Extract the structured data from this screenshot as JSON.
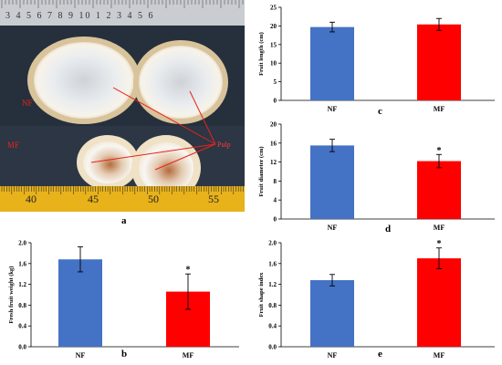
{
  "photo": {
    "labels": {
      "nf": "NF",
      "mf": "MF",
      "pulp": "Pulp"
    },
    "ruler_top_digits": "3 4 5 6 7 8 9 10 1 2 3 4 5 6",
    "ruler_bottom_digits": [
      "40",
      "45",
      "50",
      "55"
    ],
    "colors": {
      "label": "#e8231b",
      "pulp_label": "#ff3b3b",
      "ruler_bottom": "#e8b21a",
      "background": "#2a3440"
    }
  },
  "panel_labels": {
    "a": "a",
    "b": "b",
    "c": "c",
    "d": "d",
    "e": "e"
  },
  "colors": {
    "nf": "#4472c4",
    "mf": "#ff0000"
  },
  "chart_data": [
    {
      "id": "c",
      "type": "bar",
      "categories": [
        "NF",
        "MF"
      ],
      "values": [
        19.7,
        20.4
      ],
      "errors": [
        1.3,
        1.6
      ],
      "significance": [
        "",
        ""
      ],
      "ylabel": "Fruit length (cm)",
      "xlabel": "",
      "ylim": [
        0,
        25
      ],
      "yticks": [
        "0",
        "5",
        "10",
        "15",
        "20",
        "25"
      ],
      "grid": false
    },
    {
      "id": "d",
      "type": "bar",
      "categories": [
        "NF",
        "MF"
      ],
      "values": [
        15.5,
        12.2
      ],
      "errors": [
        1.3,
        1.4
      ],
      "significance": [
        "",
        "*"
      ],
      "ylabel": "Fruit diameter (cm)",
      "xlabel": "",
      "ylim": [
        0,
        20
      ],
      "yticks": [
        "0",
        "4",
        "8",
        "12",
        "16",
        "20"
      ],
      "grid": false
    },
    {
      "id": "b",
      "type": "bar",
      "categories": [
        "NF",
        "MF"
      ],
      "values": [
        1.68,
        1.06
      ],
      "errors": [
        0.24,
        0.34
      ],
      "significance": [
        "",
        "*"
      ],
      "ylabel": "Fresh fruit weight (kg)",
      "xlabel": "",
      "ylim": [
        0,
        2.0
      ],
      "yticks": [
        "0.0",
        "0.4",
        "0.8",
        "1.2",
        "1.6",
        "2.0"
      ],
      "grid": false
    },
    {
      "id": "e",
      "type": "bar",
      "categories": [
        "NF",
        "MF"
      ],
      "values": [
        1.28,
        1.7
      ],
      "errors": [
        0.11,
        0.2
      ],
      "significance": [
        "",
        "*"
      ],
      "ylabel": "Fruit shape index",
      "xlabel": "",
      "ylim": [
        0,
        2.0
      ],
      "yticks": [
        "0.0",
        "0.4",
        "0.8",
        "1.2",
        "1.6",
        "2.0"
      ],
      "grid": false
    }
  ]
}
